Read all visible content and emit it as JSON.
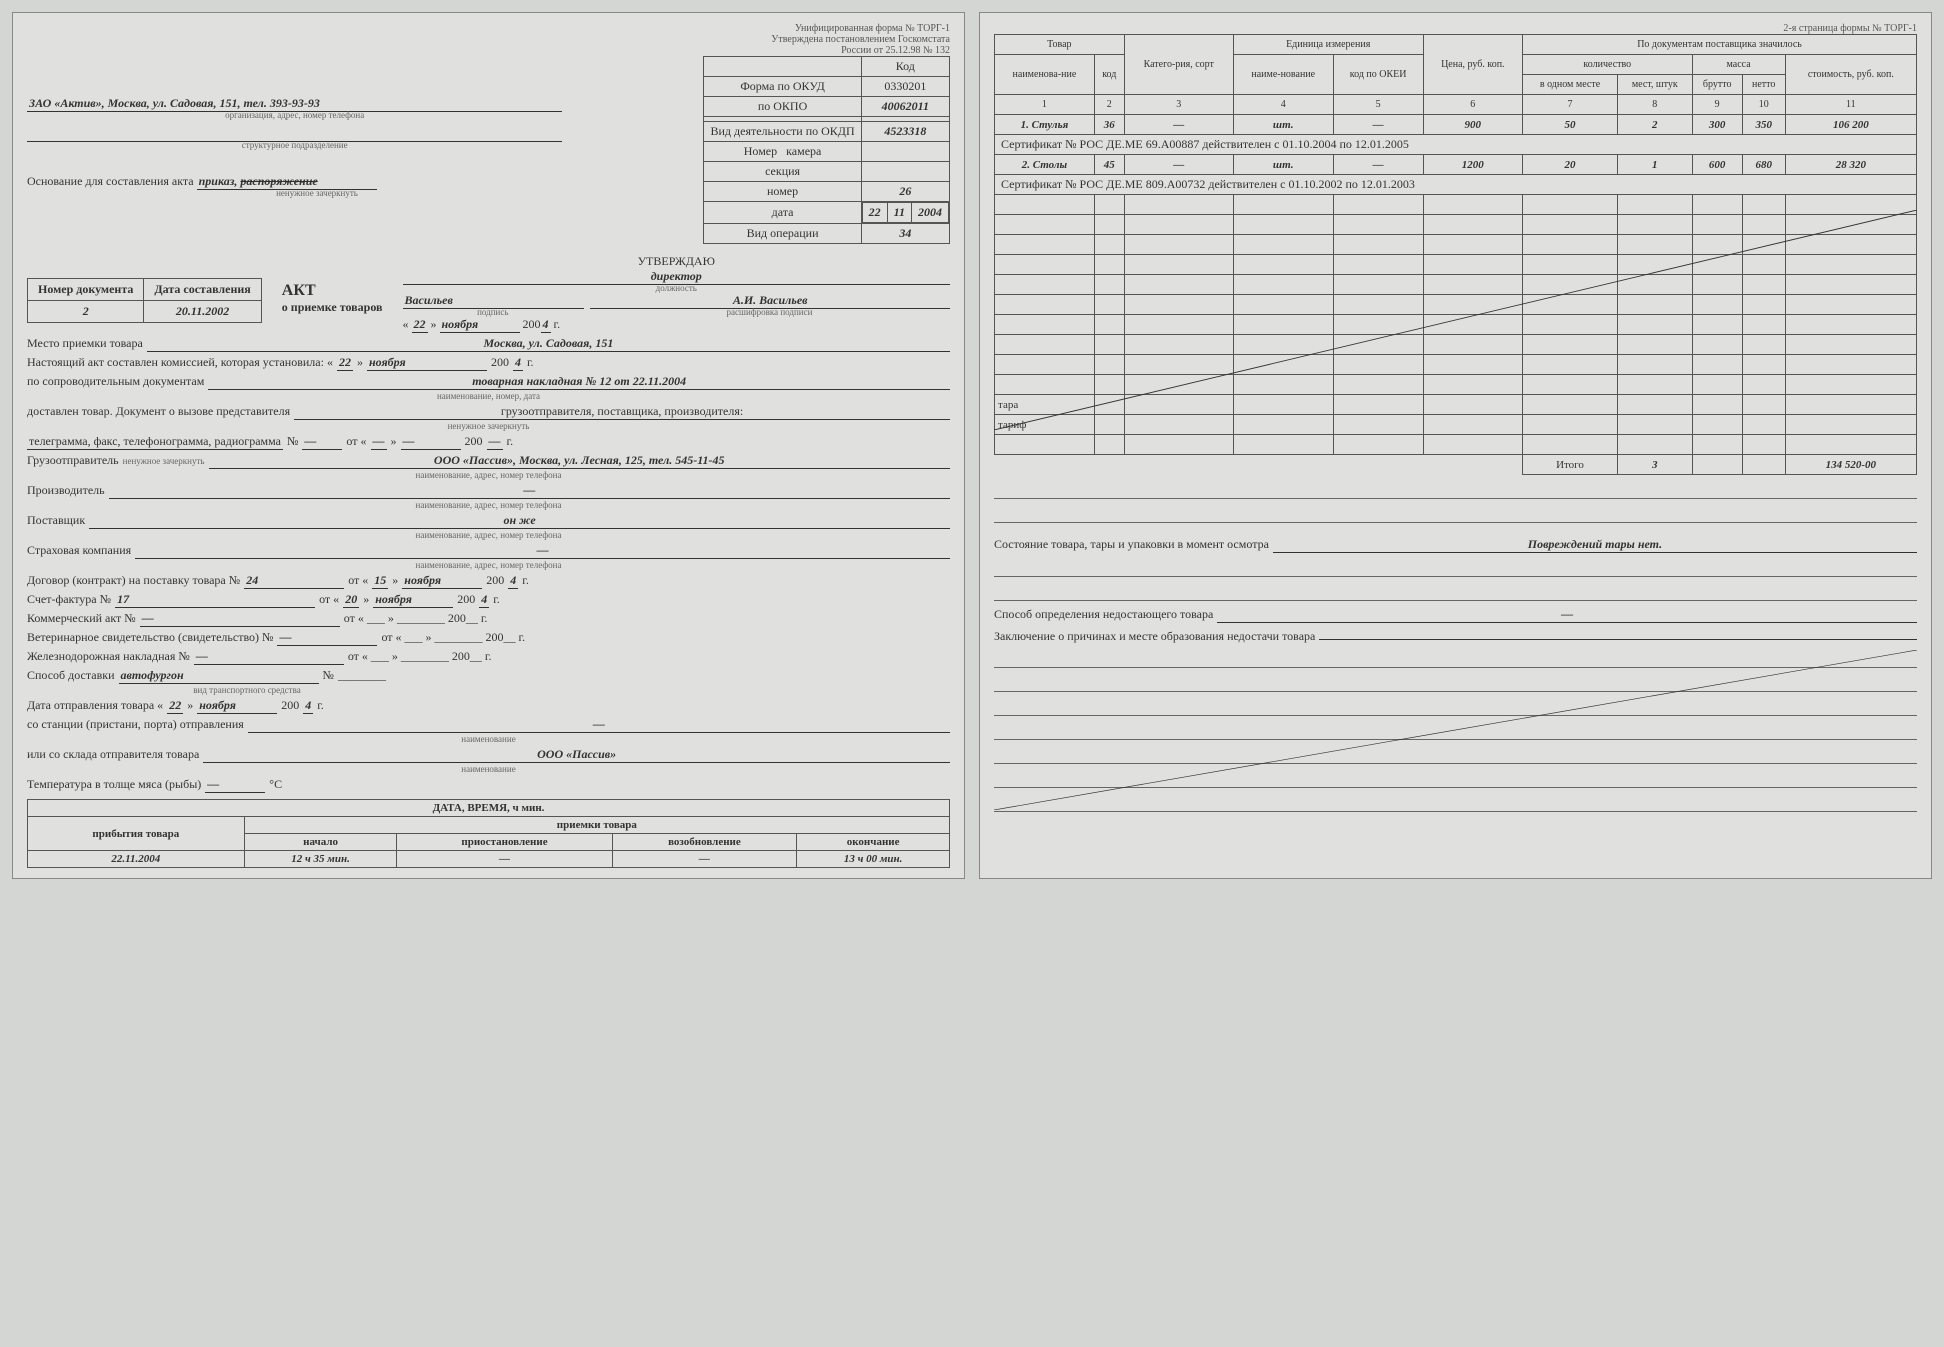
{
  "form_header": {
    "line1": "Унифицированная форма № ТОРГ-1",
    "line2": "Утверждена постановлением Госкомстата",
    "line3": "России от 25.12.98 № 132"
  },
  "codes": {
    "kod_label": "Код",
    "okud_label": "Форма по ОКУД",
    "okud": "0330201",
    "okpo_label": "по ОКПО",
    "okpo": "40062011",
    "okdp_label": "Вид деятельности по ОКДП",
    "okdp": "4523318",
    "kamera_label": "камера",
    "kamera": "",
    "sekcia_label": "секция",
    "sekcia": "",
    "nomer_label2": "номер",
    "nomer_val": "26",
    "data_label": "дата",
    "data_d": "22",
    "data_m": "11",
    "data_y": "2004",
    "operation_label": "Вид операции",
    "operation": "34",
    "nomer_label": "Номер"
  },
  "org": "ЗАО «Актив», Москва, ул. Садовая, 151, тел. 393-93-93",
  "org_caption": "организация, адрес, номер телефона",
  "struct_caption": "структурное подразделение",
  "basis_label": "Основание для составления акта",
  "basis_value": "приказ",
  "basis_strike": "распоряжение",
  "basis_caption": "ненужное зачеркнуть",
  "approve": {
    "title": "УТВЕРЖДАЮ",
    "position": "директор",
    "position_cap": "должность",
    "sign": "Васильев",
    "sign_cap": "подпись",
    "name": "А.И. Васильев",
    "name_cap": "расшифровка подписи",
    "day": "22",
    "month": "ноября",
    "year": "4"
  },
  "doc_box": {
    "num_label": "Номер документа",
    "date_label": "Дата составления",
    "num": "2",
    "date": "20.11.2002"
  },
  "akt_title": "АКТ",
  "akt_sub": "о приемке товаров",
  "place_label": "Место приемки товара",
  "place_value": "Москва, ул. Садовая, 151",
  "komissia_label": "Настоящий акт составлен комиссией, которая установила: «",
  "komissia_day": "22",
  "komissia_month": "ноября",
  "komissia_year": "4",
  "soprov_label": "по сопроводительным документам",
  "soprov_value": "товарная накладная № 12 от 22.11.2004",
  "soprov_cap": "наименование, номер, дата",
  "dostavlen_label": "доставлен товар. Документ о вызове представителя",
  "dostavlen_value": "грузоотправителя, поставщика, производителя:",
  "dostavlen_cap": "ненужное зачеркнуть",
  "dostavlen2": "телеграмма, факс, телефонограмма, радиограмма",
  "no_label": "№",
  "ot_label": "от «",
  "year_prefix": "200",
  "year_suffix": "г.",
  "gruz_label": "Грузоотправитель",
  "gruz_cap_pre": "ненужное зачеркнуть",
  "gruz_value": "ООО «Пассив», Москва, ул. Лесная, 125, тел. 545-11-45",
  "addr_cap": "наименование, адрес, номер телефона",
  "proizv_label": "Производитель",
  "proizv_value": "—",
  "postav_label": "Поставщик",
  "postav_value": "он же",
  "strah_label": "Страховая компания",
  "strah_value": "—",
  "dogovor_label": "Договор (контракт) на поставку товара №",
  "dogovor_num": "24",
  "dogovor_day": "15",
  "dogovor_month": "ноября",
  "dogovor_year": "4",
  "sf_label": "Счет-фактура №",
  "sf_num": "17",
  "sf_day": "20",
  "sf_month": "ноября",
  "sf_year": "4",
  "komm_label": "Коммерческий акт №",
  "vet_label": "Ветеринарное свидетельство (свидетельство) №",
  "jd_label": "Железнодорожная накладная №",
  "dash": "—",
  "sposob_label": "Способ доставки",
  "sposob_value": "автофургон",
  "sposob_cap": "вид транспортного средства",
  "otprav_label": "Дата отправления товара «",
  "otprav_day": "22",
  "otprav_month": "ноября",
  "otprav_year": "4",
  "stancia_label": "со станции (пристани, порта) отправления",
  "sklad_label": "или со склада отправителя товара",
  "sklad_value": "ООО «Пассив»",
  "naim_cap": "наименование",
  "temp_label": "Температура в толще мяса (рыбы)",
  "temp_value": "—",
  "temp_unit": "°С",
  "time_table": {
    "header": "ДАТА, ВРЕМЯ, ч мин.",
    "arr_label": "прибытия товара",
    "priem_label": "приемки товара",
    "start": "начало",
    "pause": "приостановление",
    "resume": "возобновление",
    "end": "окончание",
    "arr": "22.11.2004",
    "start_v": "12 ч 35 мин.",
    "pause_v": "—",
    "resume_v": "—",
    "end_v": "13 ч 00 мин."
  },
  "page2_header": "2-я страница формы № ТОРГ-1",
  "goods_header": {
    "tovar": "Товар",
    "kategoria": "Катего-рия, сорт",
    "edinica": "Единица измерения",
    "cena": "Цена, руб. коп.",
    "podok": "По документам поставщика значилось",
    "naim": "наимено­ва-ние",
    "kod": "код",
    "naim2": "наиме-нование",
    "kodokei": "код по ОКЕИ",
    "kolvo": "количество",
    "massa": "масса",
    "stoim": "стоимость, руб. коп.",
    "vmeste": "в одном месте",
    "mest": "мест, штук",
    "brutto": "брутто",
    "netto": "нетто"
  },
  "col_nums": [
    "1",
    "2",
    "3",
    "4",
    "5",
    "6",
    "7",
    "8",
    "9",
    "10",
    "11"
  ],
  "goods": [
    {
      "naim": "1. Стулья",
      "kod": "36",
      "sort": "—",
      "ed": "шт.",
      "okei": "—",
      "cena": "900",
      "vm": "50",
      "mest": "2",
      "brutto": "300",
      "netto": "350",
      "stoim": "106 200"
    },
    {
      "naim": "2. Столы",
      "kod": "45",
      "sort": "—",
      "ed": "шт.",
      "okei": "—",
      "cena": "1200",
      "vm": "20",
      "mest": "1",
      "brutto": "600",
      "netto": "680",
      "stoim": "28 320"
    }
  ],
  "certs": [
    "Сертификат № РОС ДЕ.МЕ 69.А00887 действителен с   01.10.2004   по   12.01.2005",
    "Сертификат № РОС ДЕ.МЕ 809.А00732 действителен с   01.10.2002   по   12.01.2003"
  ],
  "tara_label": "тара",
  "tarif_label": "тариф",
  "itogo_label": "Итого",
  "itogo_mest": "3",
  "itogo_stoim": "134 520-00",
  "sostoyanie_label": "Состояние товара, тары и упаковки в момент осмотра",
  "sostoyanie_value": "Повреждений тары нет.",
  "nedost_label": "Способ определения недостающего товара",
  "zakl_label": "Заключение о причинах и месте образования недостачи товара"
}
